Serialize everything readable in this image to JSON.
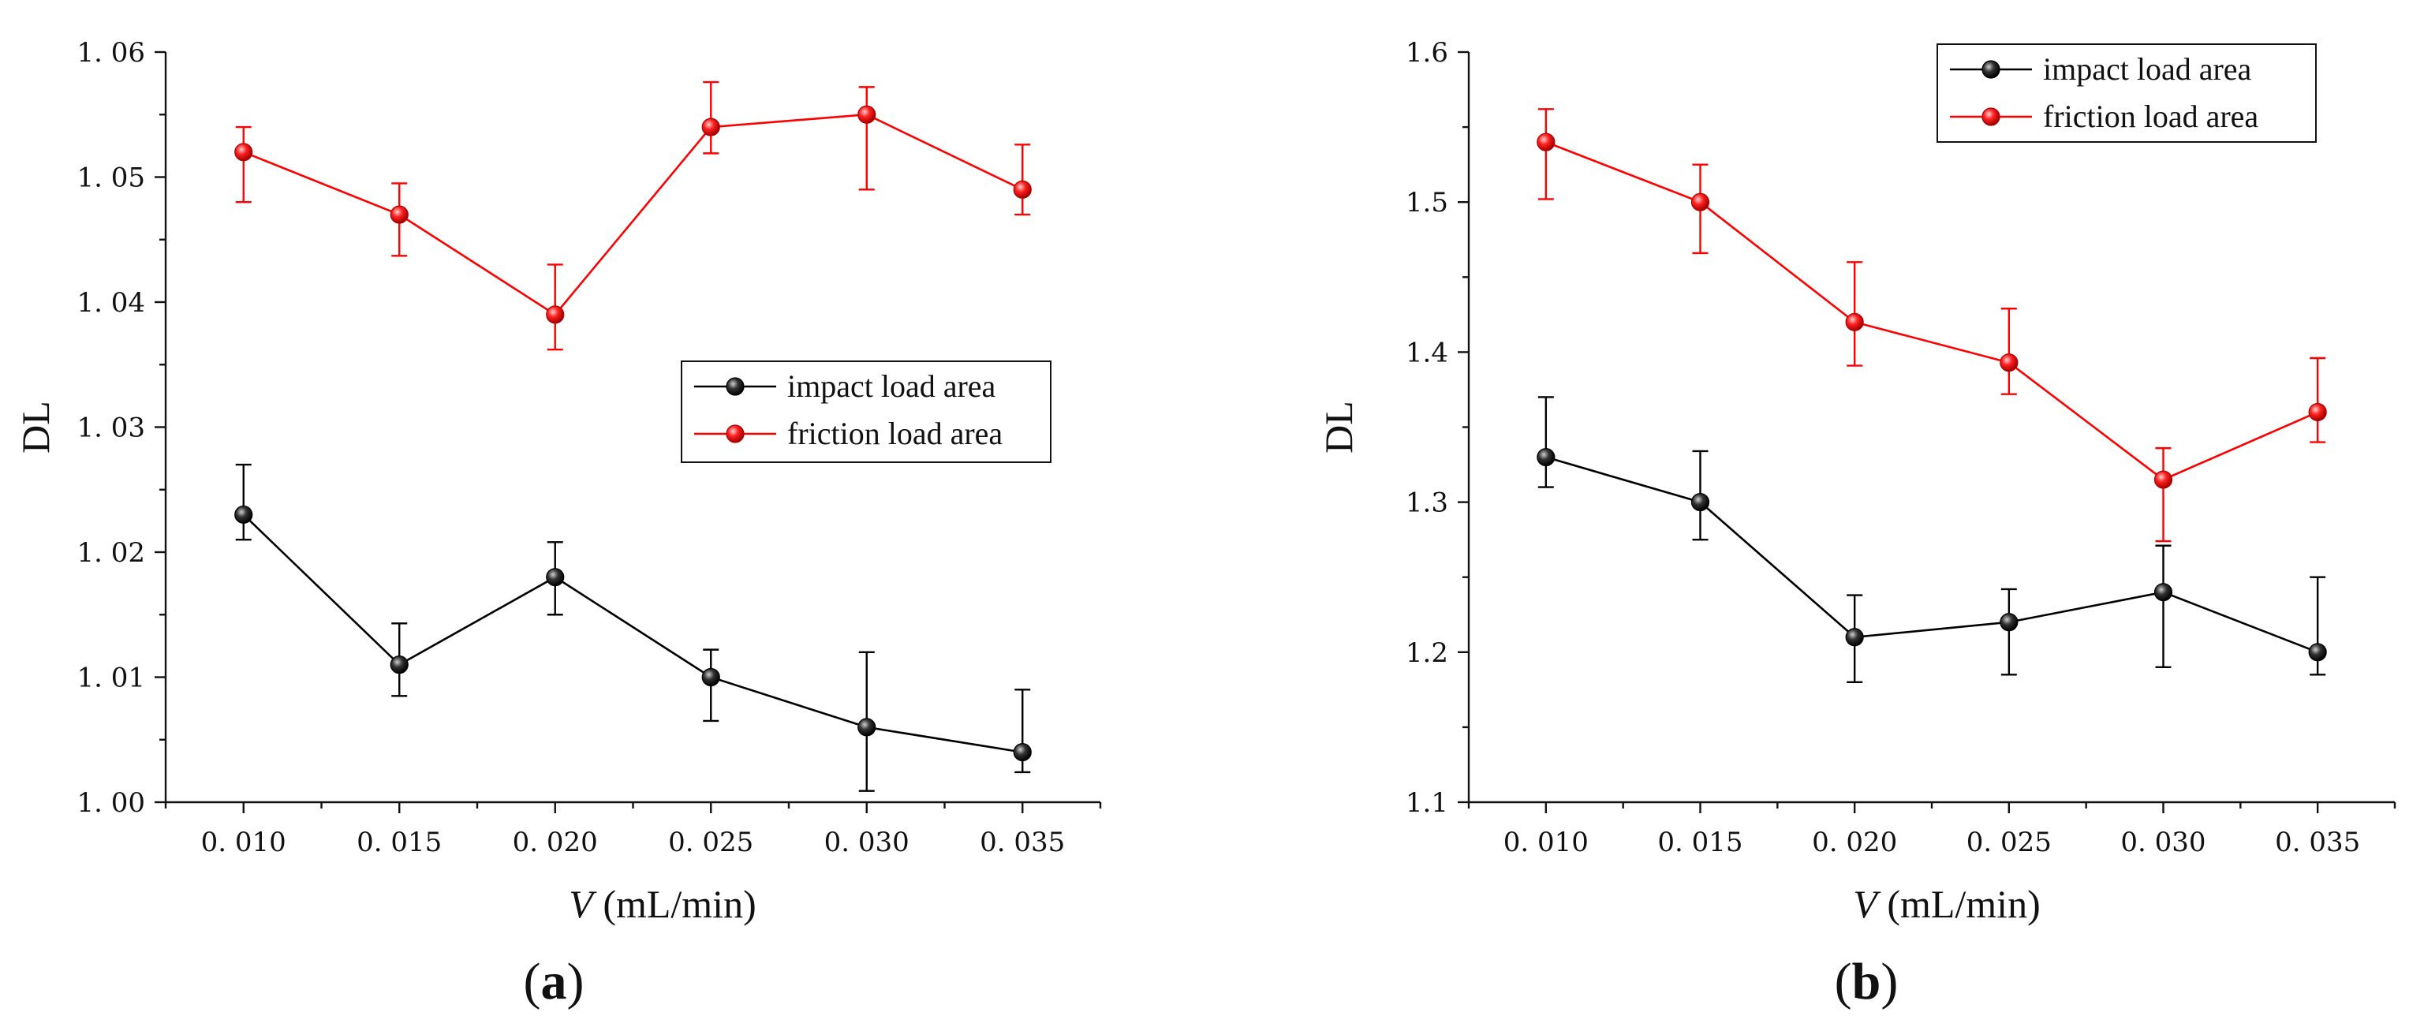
{
  "chart_data": [
    {
      "type": "line",
      "panel_label": "a",
      "title": "",
      "xlabel_var": "V",
      "xlabel_unit": " (mL/min)",
      "ylabel": "DL",
      "x": [
        0.01,
        0.015,
        0.02,
        0.025,
        0.03,
        0.035
      ],
      "x_tick_labels": [
        "0. 010",
        "0. 015",
        "0. 020",
        "0. 025",
        "0. 030",
        "0. 035"
      ],
      "xlim": [
        0.0075,
        0.0375
      ],
      "ylim": [
        1.0,
        1.06
      ],
      "y_ticks": [
        1.0,
        1.01,
        1.02,
        1.03,
        1.04,
        1.05,
        1.06
      ],
      "y_tick_labels": [
        "1. 00",
        "1. 01",
        "1. 02",
        "1. 03",
        "1. 04",
        "1. 05",
        "1. 06"
      ],
      "legend_position": "center-right",
      "series": [
        {
          "name": "impact load area",
          "color": "#000000",
          "values": [
            1.023,
            1.011,
            1.018,
            1.01,
            1.006,
            1.004
          ],
          "err_upper": [
            1.027,
            1.0143,
            1.0208,
            1.0122,
            1.012,
            1.009
          ],
          "err_lower": [
            1.021,
            1.0085,
            1.015,
            1.0065,
            1.0009,
            1.0024
          ]
        },
        {
          "name": "friction load area",
          "color": "#ff0000",
          "values": [
            1.052,
            1.047,
            1.039,
            1.054,
            1.055,
            1.049
          ],
          "err_upper": [
            1.054,
            1.0495,
            1.043,
            1.0576,
            1.0572,
            1.0526
          ],
          "err_lower": [
            1.048,
            1.0437,
            1.0362,
            1.0519,
            1.049,
            1.047
          ]
        }
      ]
    },
    {
      "type": "line",
      "panel_label": "b",
      "title": "",
      "xlabel_var": "V",
      "xlabel_unit": " (mL/min)",
      "ylabel": "DL",
      "x": [
        0.01,
        0.015,
        0.02,
        0.025,
        0.03,
        0.035
      ],
      "x_tick_labels": [
        "0. 010",
        "0. 015",
        "0. 020",
        "0. 025",
        "0. 030",
        "0. 035"
      ],
      "xlim": [
        0.0075,
        0.0375
      ],
      "ylim": [
        1.1,
        1.6
      ],
      "y_ticks": [
        1.1,
        1.2,
        1.3,
        1.4,
        1.5,
        1.6
      ],
      "y_tick_labels": [
        "1.1",
        "1.2",
        "1.3",
        "1.4",
        "1.5",
        "1.6"
      ],
      "legend_position": "top-right",
      "series": [
        {
          "name": "impact load area",
          "color": "#000000",
          "values": [
            1.33,
            1.3,
            1.21,
            1.22,
            1.24,
            1.2
          ],
          "err_upper": [
            1.37,
            1.334,
            1.238,
            1.242,
            1.271,
            1.25
          ],
          "err_lower": [
            1.31,
            1.275,
            1.18,
            1.185,
            1.19,
            1.185
          ]
        },
        {
          "name": "friction load area",
          "color": "#ff0000",
          "values": [
            1.54,
            1.5,
            1.42,
            1.393,
            1.315,
            1.36
          ],
          "err_upper": [
            1.562,
            1.525,
            1.46,
            1.429,
            1.336,
            1.396
          ],
          "err_lower": [
            1.502,
            1.466,
            1.391,
            1.372,
            1.274,
            1.34
          ]
        }
      ]
    }
  ]
}
